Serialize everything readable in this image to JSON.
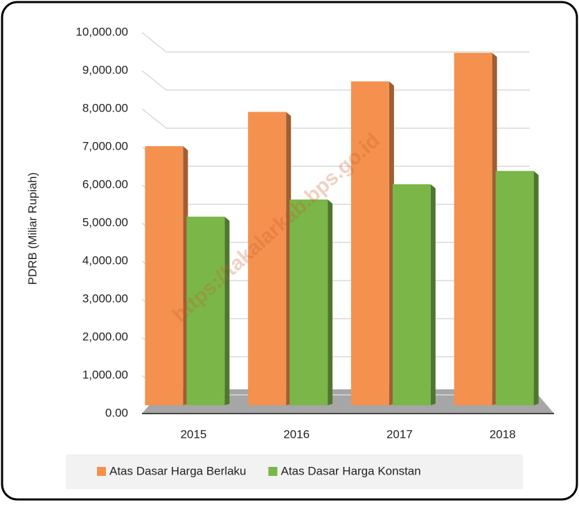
{
  "chart_data": {
    "type": "bar3d",
    "y_label": "PDRB (Miliar Rupiah)",
    "watermark": "https://takalarkab.bps.go.id",
    "categories": [
      "2015",
      "2016",
      "2017",
      "2018"
    ],
    "series": [
      {
        "name": "Atas Dasar Harga Berlaku",
        "color": "#f4914f",
        "values": [
          6800,
          7700,
          8500,
          9250
        ]
      },
      {
        "name": "Atas Dasar Harga Konstan",
        "color": "#7ab648",
        "values": [
          4950,
          5400,
          5800,
          6150
        ]
      }
    ],
    "ylim": [
      0,
      10000
    ],
    "yticks": [
      {
        "value": 0,
        "label": "0.00"
      },
      {
        "value": 1000,
        "label": "1,000.00"
      },
      {
        "value": 2000,
        "label": "2,000.00"
      },
      {
        "value": 3000,
        "label": "3,000.00"
      },
      {
        "value": 4000,
        "label": "4,000.00"
      },
      {
        "value": 5000,
        "label": "5,000.00"
      },
      {
        "value": 6000,
        "label": "6,000.00"
      },
      {
        "value": 7000,
        "label": "7,000.00"
      },
      {
        "value": 8000,
        "label": "8,000.00"
      },
      {
        "value": 9000,
        "label": "9,000.00"
      },
      {
        "value": 10000,
        "label": "10,000.00"
      }
    ],
    "grid": true,
    "legend": "bottom"
  }
}
